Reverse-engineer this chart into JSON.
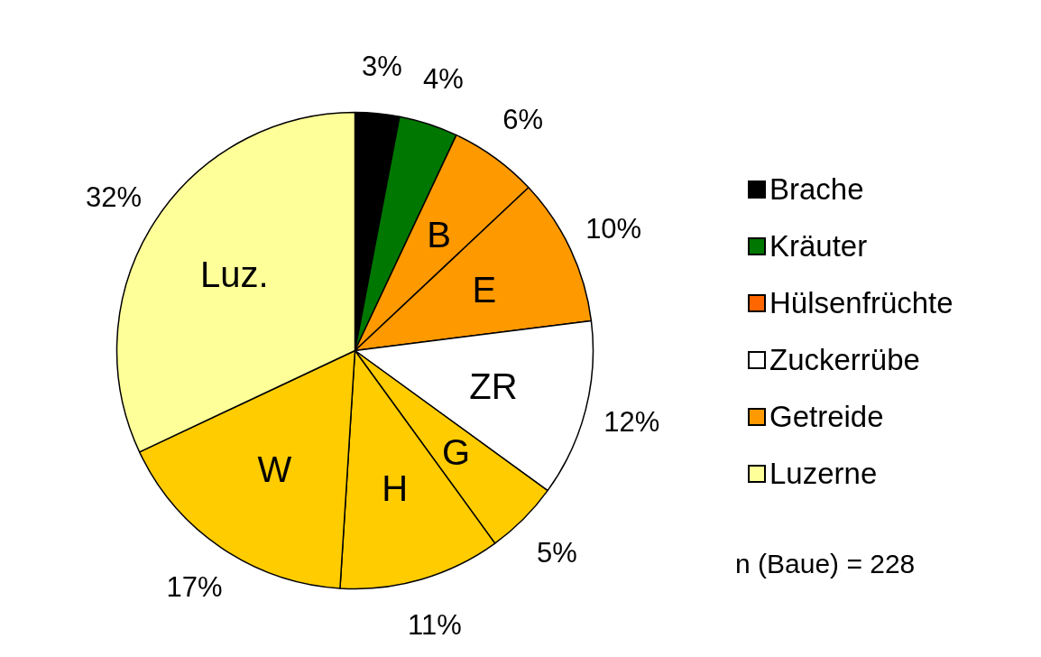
{
  "chart_data": {
    "type": "pie",
    "categories": [
      null,
      null,
      "B",
      "E",
      "ZR",
      "G",
      "H",
      "W",
      "Luz."
    ],
    "values": [
      3,
      4,
      6,
      10,
      12,
      5,
      11,
      17,
      32
    ],
    "value_labels": [
      "3%",
      "4%",
      "6%",
      "10%",
      "12%",
      "5%",
      "11%",
      "17%",
      "32%"
    ],
    "colors": [
      "#000000",
      "#007700",
      "#ff9900",
      "#ff9900",
      "#ffffff",
      "#ffcc00",
      "#ffcc00",
      "#ffcc00",
      "#ffff99"
    ],
    "annotations": [
      "Brache",
      "Kräuter",
      "Hülsenfrüchte",
      "Zuckerrübe",
      "Getreide",
      "Luzerne",
      "n (Baue) = 228"
    ]
  }
}
